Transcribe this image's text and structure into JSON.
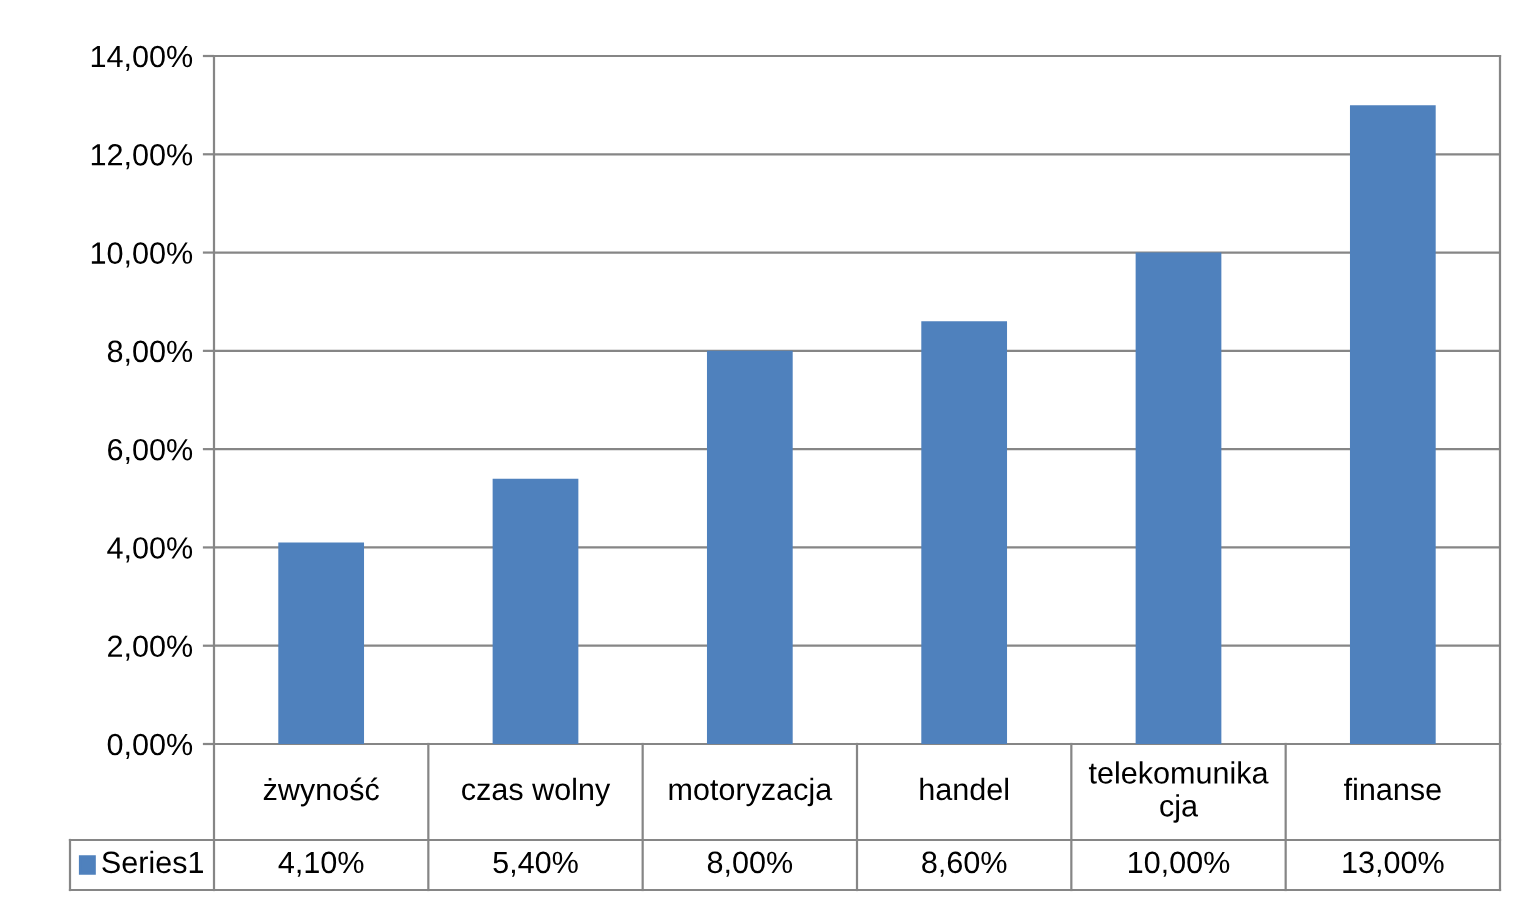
{
  "chart_data": {
    "type": "bar",
    "categories": [
      "żwyność",
      "czas wolny",
      "motoryzacja",
      "handel",
      "telekomunika\ncja",
      "finanse"
    ],
    "series": [
      {
        "name": "Series1",
        "color": "#4f81bd",
        "values": [
          4.1,
          5.4,
          8.0,
          8.6,
          10.0,
          13.0
        ],
        "value_labels": [
          "4,10%",
          "5,40%",
          "8,00%",
          "8,60%",
          "10,00%",
          "13,00%"
        ]
      }
    ],
    "ylim": [
      0,
      14
    ],
    "yticks": [
      {
        "value": 0,
        "label": "0,00%"
      },
      {
        "value": 2,
        "label": "2,00%"
      },
      {
        "value": 4,
        "label": "4,00%"
      },
      {
        "value": 6,
        "label": "6,00%"
      },
      {
        "value": 8,
        "label": "8,00%"
      },
      {
        "value": 10,
        "label": "10,00%"
      },
      {
        "value": 12,
        "label": "12,00%"
      },
      {
        "value": 14,
        "label": "14,00%"
      }
    ],
    "grid": "y",
    "legend": "bottom"
  }
}
